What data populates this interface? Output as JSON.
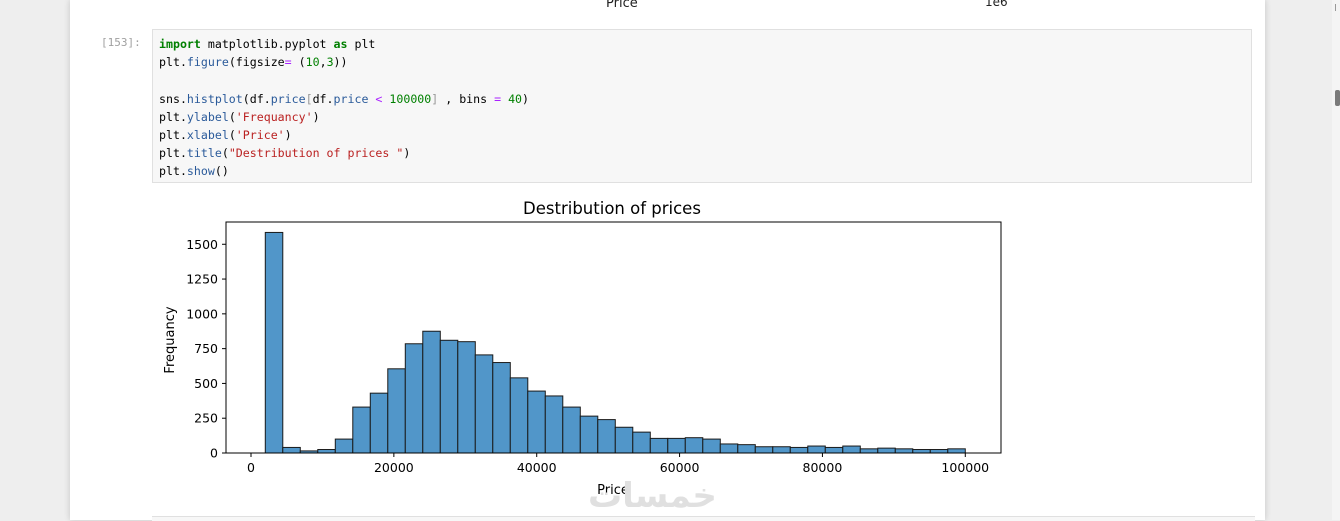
{
  "previous_output": {
    "xlabel": "Price",
    "offset_text": "1e6"
  },
  "cell": {
    "prompt": "[153]:",
    "code_lines": [
      [
        {
          "t": "import",
          "c": "kw"
        },
        {
          "t": " matplotlib.pyplot ",
          "c": ""
        },
        {
          "t": "as",
          "c": "kw"
        },
        {
          "t": " plt",
          "c": ""
        }
      ],
      [
        {
          "t": "plt.",
          "c": ""
        },
        {
          "t": "figure",
          "c": "fn"
        },
        {
          "t": "(figsize",
          "c": ""
        },
        {
          "t": "=",
          "c": "op"
        },
        {
          "t": " (",
          "c": ""
        },
        {
          "t": "10",
          "c": "num"
        },
        {
          "t": ",",
          "c": ""
        },
        {
          "t": "3",
          "c": "num"
        },
        {
          "t": "))",
          "c": ""
        }
      ],
      [],
      [
        {
          "t": "sns.",
          "c": ""
        },
        {
          "t": "histplot",
          "c": "fn"
        },
        {
          "t": "(df.",
          "c": ""
        },
        {
          "t": "price",
          "c": "fn"
        },
        {
          "t": "[",
          "c": "brk"
        },
        {
          "t": "df.",
          "c": ""
        },
        {
          "t": "price",
          "c": "fn"
        },
        {
          "t": " ",
          "c": ""
        },
        {
          "t": "<",
          "c": "op"
        },
        {
          "t": " ",
          "c": ""
        },
        {
          "t": "100000",
          "c": "num"
        },
        {
          "t": "]",
          "c": "brk"
        },
        {
          "t": " , bins ",
          "c": ""
        },
        {
          "t": "=",
          "c": "op"
        },
        {
          "t": " ",
          "c": ""
        },
        {
          "t": "40",
          "c": "num"
        },
        {
          "t": ")",
          "c": ""
        }
      ],
      [
        {
          "t": "plt.",
          "c": ""
        },
        {
          "t": "ylabel",
          "c": "fn"
        },
        {
          "t": "(",
          "c": ""
        },
        {
          "t": "'Frequancy'",
          "c": "str"
        },
        {
          "t": ")",
          "c": ""
        }
      ],
      [
        {
          "t": "plt.",
          "c": ""
        },
        {
          "t": "xlabel",
          "c": "fn"
        },
        {
          "t": "(",
          "c": ""
        },
        {
          "t": "'Price'",
          "c": "str"
        },
        {
          "t": ")",
          "c": ""
        }
      ],
      [
        {
          "t": "plt.",
          "c": ""
        },
        {
          "t": "title",
          "c": "fn"
        },
        {
          "t": "(",
          "c": ""
        },
        {
          "t": "\"Destribution of prices \"",
          "c": "str"
        },
        {
          "t": ")",
          "c": ""
        }
      ],
      [
        {
          "t": "plt.",
          "c": ""
        },
        {
          "t": "show",
          "c": "fn"
        },
        {
          "t": "()",
          "c": ""
        }
      ]
    ]
  },
  "chart_data": {
    "type": "bar",
    "title": "Destribution of prices",
    "xlabel": "Price",
    "ylabel": "Frequancy",
    "xlim": [
      -3500,
      105000
    ],
    "ylim": [
      0,
      1660
    ],
    "xticks": [
      0,
      20000,
      40000,
      60000,
      80000,
      100000
    ],
    "yticks": [
      0,
      250,
      500,
      750,
      1000,
      1250,
      1500
    ],
    "bin_start": 2000,
    "bin_width": 2450,
    "values": [
      1585,
      40,
      15,
      25,
      100,
      330,
      430,
      605,
      785,
      875,
      810,
      800,
      705,
      650,
      540,
      445,
      410,
      330,
      265,
      240,
      185,
      150,
      105,
      105,
      110,
      100,
      65,
      60,
      45,
      45,
      40,
      50,
      40,
      50,
      30,
      35,
      30,
      25,
      25,
      30
    ],
    "bar_color": "#5196c9",
    "edge_color": "#1a1a1a"
  },
  "watermark": "خمسات"
}
